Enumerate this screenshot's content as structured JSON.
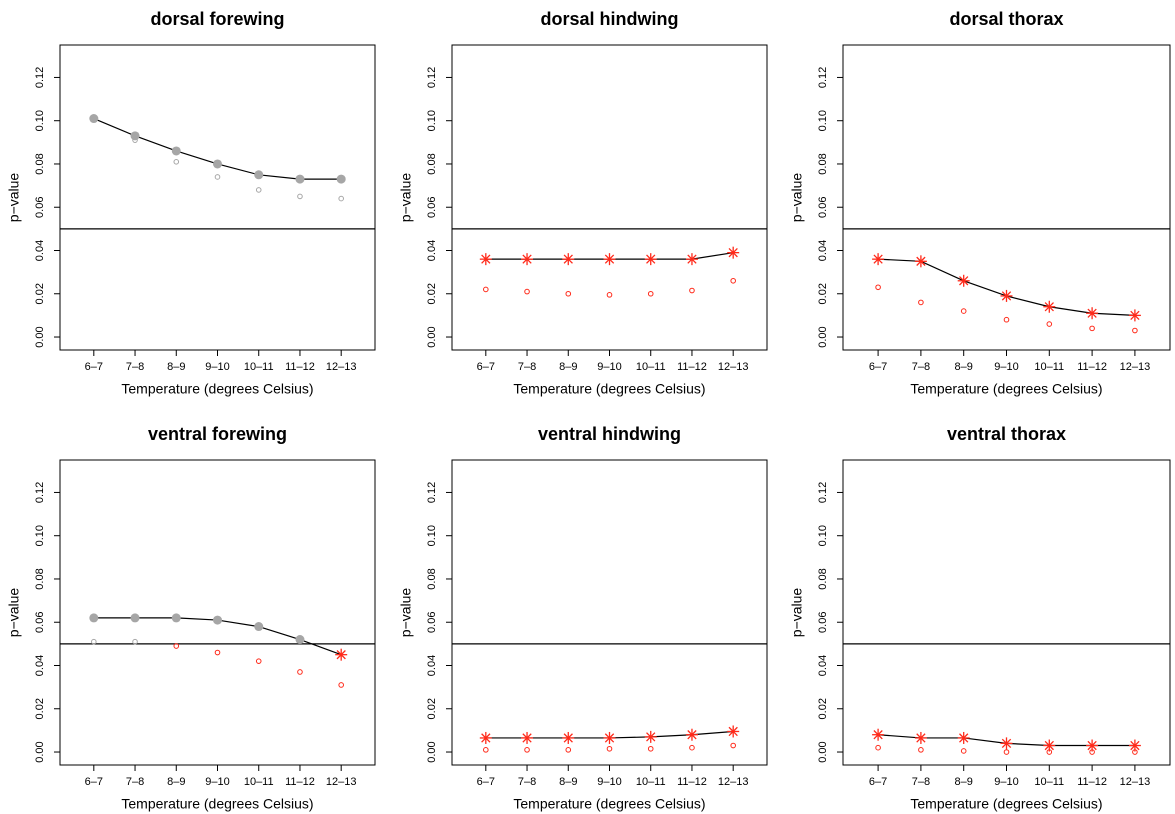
{
  "chart_data": [
    {
      "type": "line",
      "title": "dorsal forewing",
      "xlabel": "Temperature (degrees Celsius)",
      "ylabel": "p−value",
      "categories": [
        "6–7",
        "7–8",
        "8–9",
        "9–10",
        "10–11",
        "11–12",
        "12–13"
      ],
      "ylim": [
        -0.006,
        0.135
      ],
      "yticks": [
        {
          "value": 0,
          "label": "0.00"
        },
        {
          "value": 0.02,
          "label": "0.02"
        },
        {
          "value": 0.04,
          "label": "0.04"
        },
        {
          "value": 0.06,
          "label": "0.06"
        },
        {
          "value": 0.08,
          "label": "0.08"
        },
        {
          "value": 0.1,
          "label": "0.10"
        },
        {
          "value": 0.12,
          "label": "0.12"
        }
      ],
      "hline": 0.05,
      "colors": {
        "above": "#a6a6a6",
        "below": "#ff2a1a"
      },
      "series": [
        {
          "marker": "main",
          "values": [
            0.101,
            0.093,
            0.086,
            0.08,
            0.075,
            0.073,
            0.073
          ]
        },
        {
          "marker": "open",
          "values": [
            0.101,
            0.091,
            0.081,
            0.074,
            0.068,
            0.065,
            0.064
          ]
        }
      ]
    },
    {
      "type": "line",
      "title": "dorsal hindwing",
      "xlabel": "Temperature (degrees Celsius)",
      "ylabel": "p−value",
      "categories": [
        "6–7",
        "7–8",
        "8–9",
        "9–10",
        "10–11",
        "11–12",
        "12–13"
      ],
      "ylim": [
        -0.006,
        0.135
      ],
      "yticks": [
        {
          "value": 0,
          "label": "0.00"
        },
        {
          "value": 0.02,
          "label": "0.02"
        },
        {
          "value": 0.04,
          "label": "0.04"
        },
        {
          "value": 0.06,
          "label": "0.06"
        },
        {
          "value": 0.08,
          "label": "0.08"
        },
        {
          "value": 0.1,
          "label": "0.10"
        },
        {
          "value": 0.12,
          "label": "0.12"
        }
      ],
      "hline": 0.05,
      "colors": {
        "above": "#a6a6a6",
        "below": "#ff2a1a"
      },
      "series": [
        {
          "marker": "main",
          "values": [
            0.036,
            0.036,
            0.036,
            0.036,
            0.036,
            0.036,
            0.039
          ]
        },
        {
          "marker": "open",
          "values": [
            0.022,
            0.021,
            0.02,
            0.0195,
            0.02,
            0.0215,
            0.026
          ]
        }
      ]
    },
    {
      "type": "line",
      "title": "dorsal thorax",
      "xlabel": "Temperature (degrees Celsius)",
      "ylabel": "p−value",
      "categories": [
        "6–7",
        "7–8",
        "8–9",
        "9–10",
        "10–11",
        "11–12",
        "12–13"
      ],
      "ylim": [
        -0.006,
        0.135
      ],
      "yticks": [
        {
          "value": 0,
          "label": "0.00"
        },
        {
          "value": 0.02,
          "label": "0.02"
        },
        {
          "value": 0.04,
          "label": "0.04"
        },
        {
          "value": 0.06,
          "label": "0.06"
        },
        {
          "value": 0.08,
          "label": "0.08"
        },
        {
          "value": 0.1,
          "label": "0.10"
        },
        {
          "value": 0.12,
          "label": "0.12"
        }
      ],
      "hline": 0.05,
      "colors": {
        "above": "#a6a6a6",
        "below": "#ff2a1a"
      },
      "series": [
        {
          "marker": "main",
          "values": [
            0.036,
            0.035,
            0.026,
            0.019,
            0.014,
            0.011,
            0.01
          ]
        },
        {
          "marker": "open",
          "values": [
            0.023,
            0.016,
            0.012,
            0.008,
            0.006,
            0.004,
            0.003
          ]
        }
      ]
    },
    {
      "type": "line",
      "title": "ventral forewing",
      "xlabel": "Temperature (degrees Celsius)",
      "ylabel": "p−value",
      "categories": [
        "6–7",
        "7–8",
        "8–9",
        "9–10",
        "10–11",
        "11–12",
        "12–13"
      ],
      "ylim": [
        -0.006,
        0.135
      ],
      "yticks": [
        {
          "value": 0,
          "label": "0.00"
        },
        {
          "value": 0.02,
          "label": "0.02"
        },
        {
          "value": 0.04,
          "label": "0.04"
        },
        {
          "value": 0.06,
          "label": "0.06"
        },
        {
          "value": 0.08,
          "label": "0.08"
        },
        {
          "value": 0.1,
          "label": "0.10"
        },
        {
          "value": 0.12,
          "label": "0.12"
        }
      ],
      "hline": 0.05,
      "colors": {
        "above": "#a6a6a6",
        "below": "#ff2a1a"
      },
      "series": [
        {
          "marker": "main",
          "values": [
            0.062,
            0.062,
            0.062,
            0.061,
            0.058,
            0.052,
            0.045
          ]
        },
        {
          "marker": "open",
          "values": [
            0.051,
            0.051,
            0.049,
            0.046,
            0.042,
            0.037,
            0.031
          ]
        }
      ]
    },
    {
      "type": "line",
      "title": "ventral hindwing",
      "xlabel": "Temperature (degrees Celsius)",
      "ylabel": "p−value",
      "categories": [
        "6–7",
        "7–8",
        "8–9",
        "9–10",
        "10–11",
        "11–12",
        "12–13"
      ],
      "ylim": [
        -0.006,
        0.135
      ],
      "yticks": [
        {
          "value": 0,
          "label": "0.00"
        },
        {
          "value": 0.02,
          "label": "0.02"
        },
        {
          "value": 0.04,
          "label": "0.04"
        },
        {
          "value": 0.06,
          "label": "0.06"
        },
        {
          "value": 0.08,
          "label": "0.08"
        },
        {
          "value": 0.1,
          "label": "0.10"
        },
        {
          "value": 0.12,
          "label": "0.12"
        }
      ],
      "hline": 0.05,
      "colors": {
        "above": "#a6a6a6",
        "below": "#ff2a1a"
      },
      "series": [
        {
          "marker": "main",
          "values": [
            0.0065,
            0.0065,
            0.0065,
            0.0065,
            0.007,
            0.008,
            0.0095
          ]
        },
        {
          "marker": "open",
          "values": [
            0.001,
            0.001,
            0.001,
            0.0015,
            0.0015,
            0.002,
            0.003
          ]
        }
      ]
    },
    {
      "type": "line",
      "title": "ventral thorax",
      "xlabel": "Temperature (degrees Celsius)",
      "ylabel": "p−value",
      "categories": [
        "6–7",
        "7–8",
        "8–9",
        "9–10",
        "10–11",
        "11–12",
        "12–13"
      ],
      "ylim": [
        -0.006,
        0.135
      ],
      "yticks": [
        {
          "value": 0,
          "label": "0.00"
        },
        {
          "value": 0.02,
          "label": "0.02"
        },
        {
          "value": 0.04,
          "label": "0.04"
        },
        {
          "value": 0.06,
          "label": "0.06"
        },
        {
          "value": 0.08,
          "label": "0.08"
        },
        {
          "value": 0.1,
          "label": "0.10"
        },
        {
          "value": 0.12,
          "label": "0.12"
        }
      ],
      "hline": 0.05,
      "colors": {
        "above": "#a6a6a6",
        "below": "#ff2a1a"
      },
      "series": [
        {
          "marker": "main",
          "values": [
            0.008,
            0.0065,
            0.0065,
            0.004,
            0.003,
            0.003,
            0.003
          ]
        },
        {
          "marker": "open",
          "values": [
            0.002,
            0.001,
            0.0005,
            0,
            0,
            0,
            0
          ]
        }
      ]
    }
  ]
}
